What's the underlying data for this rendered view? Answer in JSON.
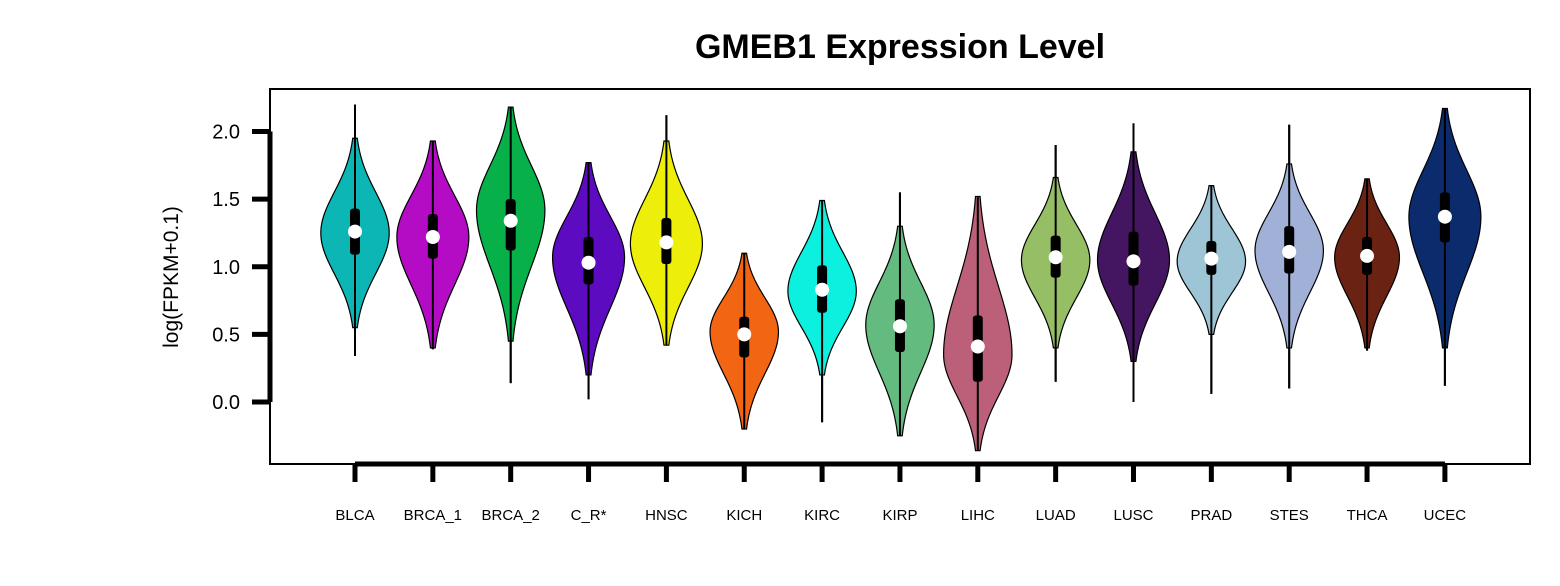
{
  "chart_data": {
    "type": "violin",
    "title": "GMEB1 Expression Level",
    "xlabel": "",
    "ylabel": "log(FPKM+0.1)",
    "ylim": [
      -0.48,
      2.3
    ],
    "yticks": [
      "0.0",
      "0.5",
      "1.0",
      "1.5",
      "2.0"
    ],
    "ytick_values": [
      0.0,
      0.5,
      1.0,
      1.5,
      2.0
    ],
    "grid": false,
    "legend": "none",
    "categories": [
      "BLCA",
      "BRCA_1",
      "BRCA_2",
      "C_R*",
      "HNSC",
      "KICH",
      "KIRC",
      "KIRP",
      "LIHC",
      "LUAD",
      "LUSC",
      "PRAD",
      "STES",
      "THCA",
      "UCEC"
    ],
    "series": [
      {
        "category": "BLCA",
        "color": "#0BB6B4",
        "min": 0.34,
        "q1": 1.09,
        "median": 1.26,
        "q3": 1.43,
        "max": 2.2,
        "violin_top": 1.95,
        "violin_bottom": 0.55,
        "mode": 1.25,
        "half_width": 0.95
      },
      {
        "category": "BRCA_1",
        "color": "#B40BC4",
        "min": 0.39,
        "q1": 1.06,
        "median": 1.22,
        "q3": 1.39,
        "max": 1.93,
        "violin_top": 1.93,
        "violin_bottom": 0.4,
        "mode": 1.22,
        "half_width": 1.0
      },
      {
        "category": "BRCA_2",
        "color": "#08B04A",
        "min": 0.14,
        "q1": 1.12,
        "median": 1.34,
        "q3": 1.5,
        "max": 2.18,
        "violin_top": 2.18,
        "violin_bottom": 0.45,
        "mode": 1.42,
        "half_width": 0.95
      },
      {
        "category": "C_R*",
        "color": "#5C0BC1",
        "min": 0.02,
        "q1": 0.87,
        "median": 1.03,
        "q3": 1.22,
        "max": 1.77,
        "violin_top": 1.77,
        "violin_bottom": 0.2,
        "mode": 1.07,
        "half_width": 1.0
      },
      {
        "category": "HNSC",
        "color": "#EEEE0B",
        "min": 0.42,
        "q1": 1.02,
        "median": 1.18,
        "q3": 1.36,
        "max": 2.12,
        "violin_top": 1.93,
        "violin_bottom": 0.42,
        "mode": 1.17,
        "half_width": 1.0
      },
      {
        "category": "KICH",
        "color": "#F26513",
        "min": -0.2,
        "q1": 0.33,
        "median": 0.5,
        "q3": 0.63,
        "max": 1.1,
        "violin_top": 1.1,
        "violin_bottom": -0.2,
        "mode": 0.52,
        "half_width": 0.95
      },
      {
        "category": "KIRC",
        "color": "#0BF0DF",
        "min": -0.15,
        "q1": 0.66,
        "median": 0.83,
        "q3": 1.01,
        "max": 1.49,
        "violin_top": 1.49,
        "violin_bottom": 0.2,
        "mode": 0.82,
        "half_width": 0.95
      },
      {
        "category": "KIRP",
        "color": "#63BB80",
        "min": -0.25,
        "q1": 0.37,
        "median": 0.56,
        "q3": 0.76,
        "max": 1.55,
        "violin_top": 1.3,
        "violin_bottom": -0.25,
        "mode": 0.57,
        "half_width": 0.95
      },
      {
        "category": "LIHC",
        "color": "#BC6079",
        "min": -0.36,
        "q1": 0.15,
        "median": 0.41,
        "q3": 0.64,
        "max": 1.52,
        "violin_top": 1.52,
        "violin_bottom": -0.36,
        "mode": 0.35,
        "half_width": 0.95
      },
      {
        "category": "LUAD",
        "color": "#96BE64",
        "min": 0.15,
        "q1": 0.92,
        "median": 1.07,
        "q3": 1.23,
        "max": 1.9,
        "violin_top": 1.66,
        "violin_bottom": 0.4,
        "mode": 1.05,
        "half_width": 0.95
      },
      {
        "category": "LUSC",
        "color": "#441560",
        "min": 0.0,
        "q1": 0.86,
        "median": 1.04,
        "q3": 1.26,
        "max": 2.06,
        "violin_top": 1.85,
        "violin_bottom": 0.3,
        "mode": 1.05,
        "half_width": 1.0
      },
      {
        "category": "PRAD",
        "color": "#9EC5D6",
        "min": 0.06,
        "q1": 0.94,
        "median": 1.06,
        "q3": 1.19,
        "max": 1.6,
        "violin_top": 1.6,
        "violin_bottom": 0.5,
        "mode": 1.04,
        "half_width": 0.95
      },
      {
        "category": "STES",
        "color": "#A1B0D6",
        "min": 0.1,
        "q1": 0.95,
        "median": 1.11,
        "q3": 1.3,
        "max": 2.05,
        "violin_top": 1.76,
        "violin_bottom": 0.4,
        "mode": 1.12,
        "half_width": 0.95
      },
      {
        "category": "THCA",
        "color": "#6A2212",
        "min": 0.38,
        "q1": 0.94,
        "median": 1.08,
        "q3": 1.22,
        "max": 1.65,
        "violin_top": 1.65,
        "violin_bottom": 0.4,
        "mode": 1.07,
        "half_width": 0.9
      },
      {
        "category": "UCEC",
        "color": "#0C2B6C",
        "min": 0.12,
        "q1": 1.18,
        "median": 1.37,
        "q3": 1.55,
        "max": 2.17,
        "violin_top": 2.17,
        "violin_bottom": 0.4,
        "mode": 1.37,
        "half_width": 1.0
      }
    ]
  }
}
